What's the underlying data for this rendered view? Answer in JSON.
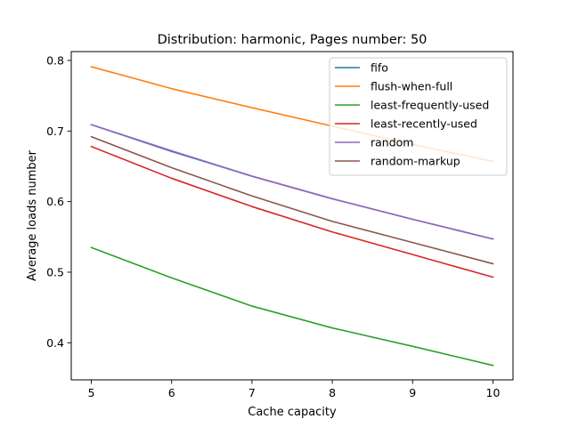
{
  "chart_data": {
    "type": "line",
    "title": "Distribution: harmonic, Pages number: 50",
    "xlabel": "Cache capacity",
    "ylabel": "Average loads number",
    "x": [
      5,
      6,
      7,
      8,
      9,
      10
    ],
    "xlim": [
      4.75,
      10.25
    ],
    "ylim": [
      0.3475,
      0.8125
    ],
    "xticks": [
      5,
      6,
      7,
      8,
      9,
      10
    ],
    "yticks": [
      0.4,
      0.5,
      0.6,
      0.7,
      0.8
    ],
    "grid": false,
    "legend_position": "top-right",
    "series": [
      {
        "name": "fifo",
        "color": "#1f77b4",
        "values": [
          0.709,
          0.671,
          0.636,
          0.604,
          0.575,
          0.547
        ]
      },
      {
        "name": "flush-when-full",
        "color": "#ff7f0e",
        "values": [
          0.791,
          0.76,
          0.733,
          0.707,
          0.681,
          0.657
        ]
      },
      {
        "name": "least-frequently-used",
        "color": "#2ca02c",
        "values": [
          0.535,
          0.492,
          0.452,
          0.421,
          0.395,
          0.368
        ]
      },
      {
        "name": "least-recently-used",
        "color": "#d62728",
        "values": [
          0.678,
          0.633,
          0.593,
          0.557,
          0.525,
          0.493
        ]
      },
      {
        "name": "random",
        "color": "#9467bd",
        "values": [
          0.709,
          0.672,
          0.636,
          0.604,
          0.575,
          0.547
        ]
      },
      {
        "name": "random-markup",
        "color": "#8c564b",
        "values": [
          0.692,
          0.648,
          0.608,
          0.572,
          0.542,
          0.512
        ]
      }
    ]
  }
}
